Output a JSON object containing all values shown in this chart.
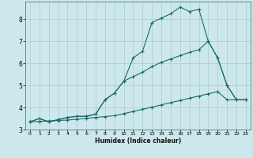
{
  "xlabel": "Humidex (Indice chaleur)",
  "background_color": "#cde8ec",
  "grid_color": "#aacccc",
  "line_color": "#1a6b6b",
  "xlim": [
    -0.5,
    23.5
  ],
  "ylim": [
    3.0,
    8.8
  ],
  "yticks": [
    3,
    4,
    5,
    6,
    7,
    8
  ],
  "xticks": [
    0,
    1,
    2,
    3,
    4,
    5,
    6,
    7,
    8,
    9,
    10,
    11,
    12,
    13,
    14,
    15,
    16,
    17,
    18,
    19,
    20,
    21,
    22,
    23
  ],
  "series1_x": [
    0,
    1,
    2,
    3,
    4,
    5,
    6,
    7,
    8,
    9,
    10,
    11,
    12,
    13,
    14,
    15,
    16,
    17,
    18,
    19,
    20,
    21,
    22,
    23
  ],
  "series1_y": [
    3.35,
    3.5,
    3.35,
    3.45,
    3.55,
    3.6,
    3.6,
    3.7,
    4.35,
    4.65,
    5.2,
    6.25,
    6.55,
    7.85,
    8.05,
    8.25,
    8.55,
    8.35,
    8.45,
    7.0,
    6.25,
    5.0,
    4.35,
    4.35
  ],
  "series2_x": [
    0,
    1,
    2,
    3,
    4,
    5,
    6,
    7,
    8,
    9,
    10,
    11,
    12,
    13,
    14,
    15,
    16,
    17,
    18,
    19,
    20,
    21,
    22,
    23
  ],
  "series2_y": [
    3.35,
    3.37,
    3.39,
    3.41,
    3.43,
    3.47,
    3.51,
    3.55,
    3.59,
    3.63,
    3.72,
    3.82,
    3.92,
    4.02,
    4.12,
    4.22,
    4.32,
    4.42,
    4.52,
    4.62,
    4.72,
    4.35,
    4.35,
    4.35
  ],
  "series3_x": [
    0,
    1,
    2,
    3,
    4,
    5,
    6,
    7,
    8,
    9,
    10,
    11,
    12,
    13,
    14,
    15,
    16,
    17,
    18,
    19,
    20,
    21,
    22,
    23
  ],
  "series3_y": [
    3.35,
    3.5,
    3.35,
    3.45,
    3.55,
    3.6,
    3.6,
    3.7,
    4.35,
    4.65,
    5.2,
    5.4,
    5.6,
    5.85,
    6.05,
    6.2,
    6.35,
    6.5,
    6.62,
    7.0,
    6.25,
    5.0,
    4.35,
    4.35
  ]
}
